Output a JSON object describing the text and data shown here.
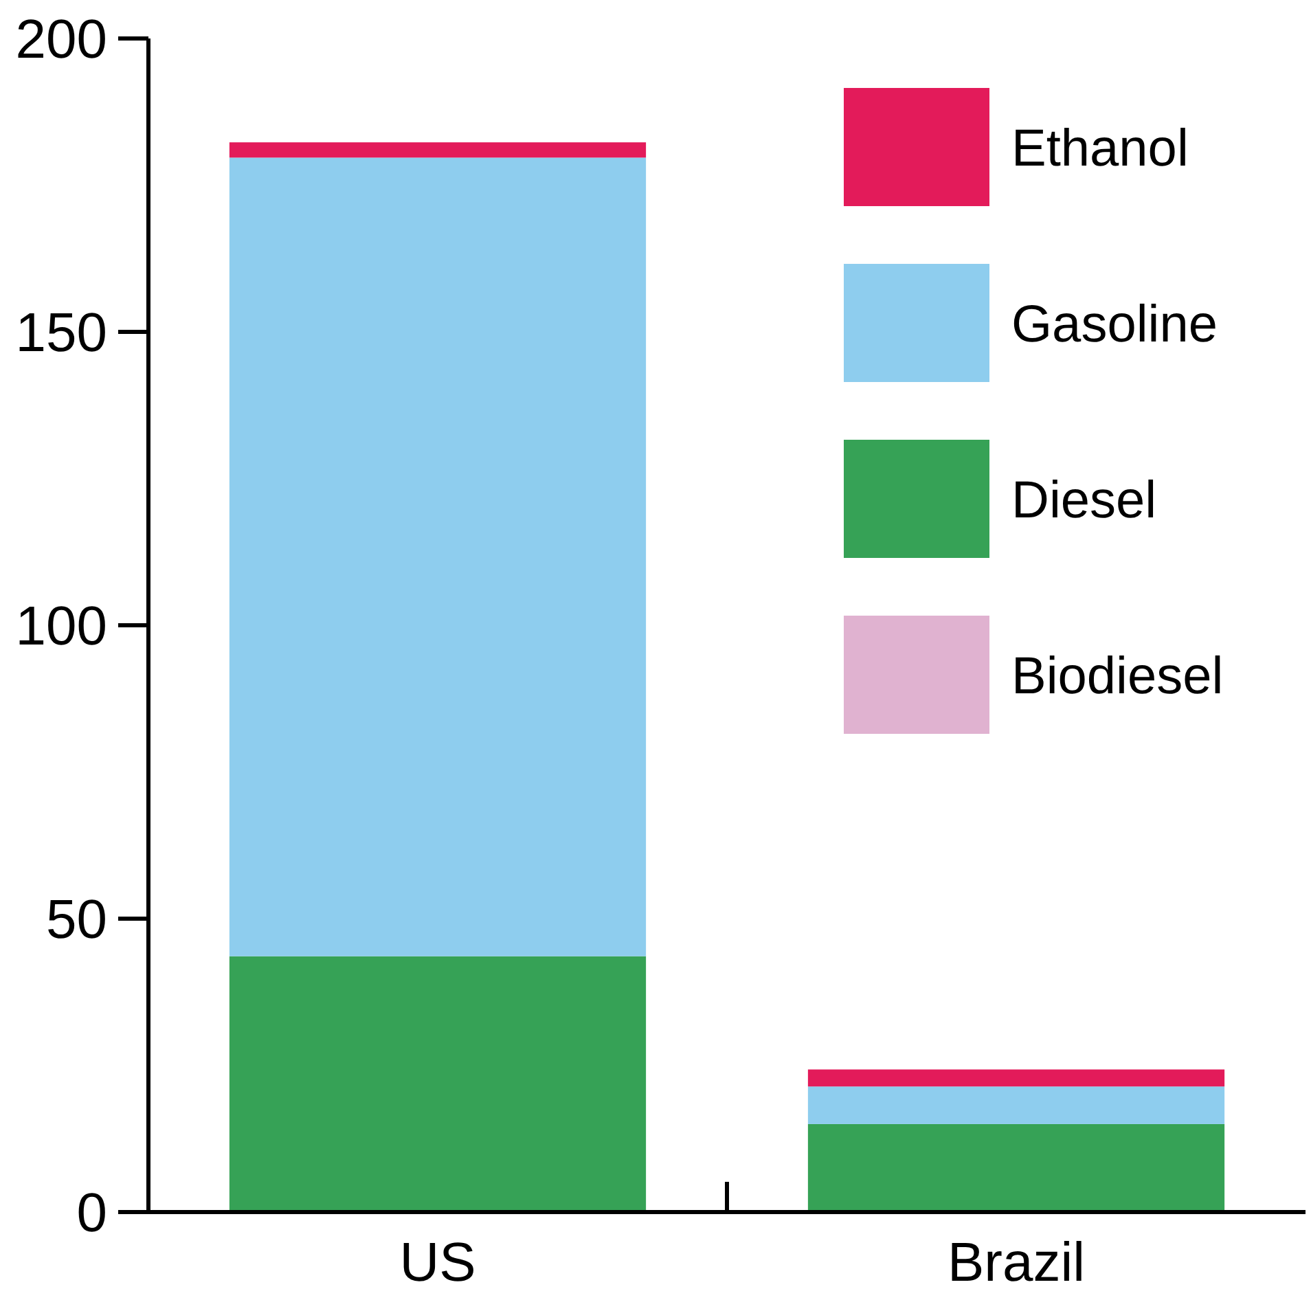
{
  "chart_data": {
    "type": "bar",
    "stacked": true,
    "categories": [
      "US",
      "Brazil"
    ],
    "series": [
      {
        "name": "Biodiesel",
        "color": "#e0b2d0",
        "values": [
          0,
          0
        ]
      },
      {
        "name": "Diesel",
        "color": "#36a256",
        "values": [
          43.6,
          15.0
        ]
      },
      {
        "name": "Gasoline",
        "color": "#8ecdee",
        "values": [
          136.1,
          6.4
        ]
      },
      {
        "name": "Ethanol",
        "color": "#e31b5a",
        "values": [
          2.6,
          2.9
        ]
      }
    ],
    "ylim": [
      0,
      200
    ],
    "yticks": [
      0,
      50,
      100,
      150,
      200
    ],
    "grid": false,
    "legend": "top right"
  }
}
